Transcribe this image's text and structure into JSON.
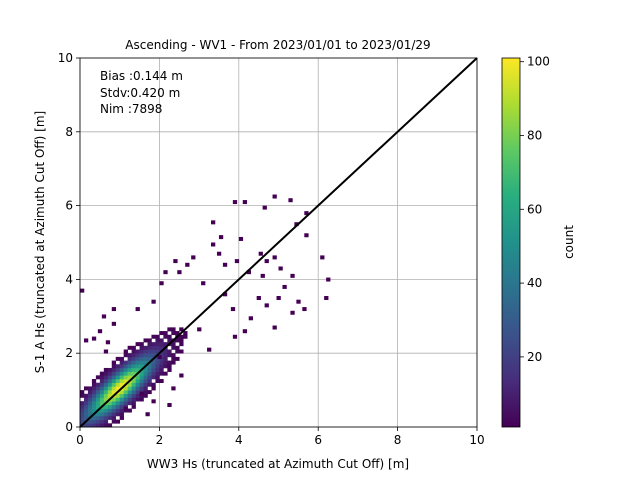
{
  "chart_data": {
    "type": "heatmap",
    "title": "Ascending - WV1 - From 2023/01/01 to 2023/01/29",
    "xlabel": "WW3 Hs (truncated at Azimuth Cut Off) [m]",
    "ylabel": "S-1 A Hs (truncated at Azimuth Cut Off) [m]",
    "xlim": [
      0,
      10
    ],
    "ylim": [
      0,
      10
    ],
    "xticks": [
      "0",
      "2",
      "4",
      "6",
      "8",
      "10"
    ],
    "yticks": [
      "0",
      "2",
      "4",
      "6",
      "8",
      "10"
    ],
    "grid": true,
    "bin_size_m": 0.1,
    "stats": [
      "Bias :0.144 m",
      "Stdv:0.420 m",
      "Nim :7898"
    ],
    "reference_line": {
      "x": [
        0,
        10
      ],
      "y": [
        0,
        10
      ],
      "color": "#000000"
    },
    "colorbar": {
      "label": "count",
      "range": [
        1,
        101
      ],
      "ticks": [
        "20",
        "40",
        "60",
        "80",
        "100"
      ],
      "colormap": "viridis"
    },
    "density_model": {
      "peak_center": [
        1.0,
        1.05
      ],
      "peak_count": 101,
      "spread_along_diagonal": 0.75,
      "spread_across_diagonal": 0.22
    },
    "outlier_bins": [
      [
        0.0,
        3.65
      ],
      [
        4.85,
        6.2
      ],
      [
        5.25,
        6.1
      ],
      [
        4.6,
        5.9
      ],
      [
        3.85,
        6.05
      ],
      [
        4.1,
        6.05
      ],
      [
        5.65,
        5.75
      ],
      [
        5.65,
        5.15
      ],
      [
        5.4,
        5.45
      ],
      [
        3.3,
        5.5
      ],
      [
        4.0,
        5.05
      ],
      [
        3.5,
        5.1
      ],
      [
        6.05,
        4.55
      ],
      [
        6.2,
        3.95
      ],
      [
        6.15,
        3.45
      ],
      [
        5.6,
        3.15
      ],
      [
        5.3,
        3.05
      ],
      [
        4.65,
        3.25
      ],
      [
        4.45,
        3.45
      ],
      [
        3.6,
        4.35
      ],
      [
        4.2,
        4.15
      ],
      [
        3.9,
        4.45
      ],
      [
        4.5,
        4.65
      ],
      [
        4.65,
        4.45
      ],
      [
        4.85,
        4.55
      ],
      [
        5.0,
        4.25
      ],
      [
        5.3,
        4.05
      ],
      [
        2.8,
        4.55
      ],
      [
        2.45,
        4.15
      ],
      [
        2.1,
        4.15
      ],
      [
        2.0,
        3.85
      ],
      [
        1.8,
        3.35
      ],
      [
        1.4,
        3.15
      ],
      [
        0.8,
        3.15
      ],
      [
        0.55,
        2.95
      ],
      [
        4.95,
        3.45
      ],
      [
        3.8,
        3.15
      ],
      [
        4.25,
        2.9
      ],
      [
        4.1,
        2.55
      ],
      [
        4.85,
        2.65
      ],
      [
        3.85,
        2.4
      ],
      [
        3.2,
        2.05
      ],
      [
        2.5,
        1.35
      ],
      [
        2.3,
        1.0
      ],
      [
        1.5,
        0.85
      ],
      [
        1.8,
        0.65
      ],
      [
        1.1,
        0.45
      ],
      [
        1.65,
        0.3
      ],
      [
        2.2,
        0.55
      ],
      [
        0.6,
        2.0
      ],
      [
        0.3,
        2.35
      ],
      [
        0.1,
        2.3
      ],
      [
        0.45,
        2.55
      ],
      [
        0.65,
        2.25
      ],
      [
        2.65,
        4.35
      ],
      [
        3.05,
        3.85
      ],
      [
        3.45,
        4.65
      ],
      [
        5.1,
        3.75
      ],
      [
        3.6,
        3.55
      ],
      [
        2.95,
        2.6
      ],
      [
        1.95,
        1.85
      ],
      [
        5.45,
        3.35
      ],
      [
        4.55,
        4.05
      ],
      [
        3.3,
        4.9
      ],
      [
        2.35,
        4.45
      ],
      [
        0.8,
        2.75
      ]
    ]
  }
}
